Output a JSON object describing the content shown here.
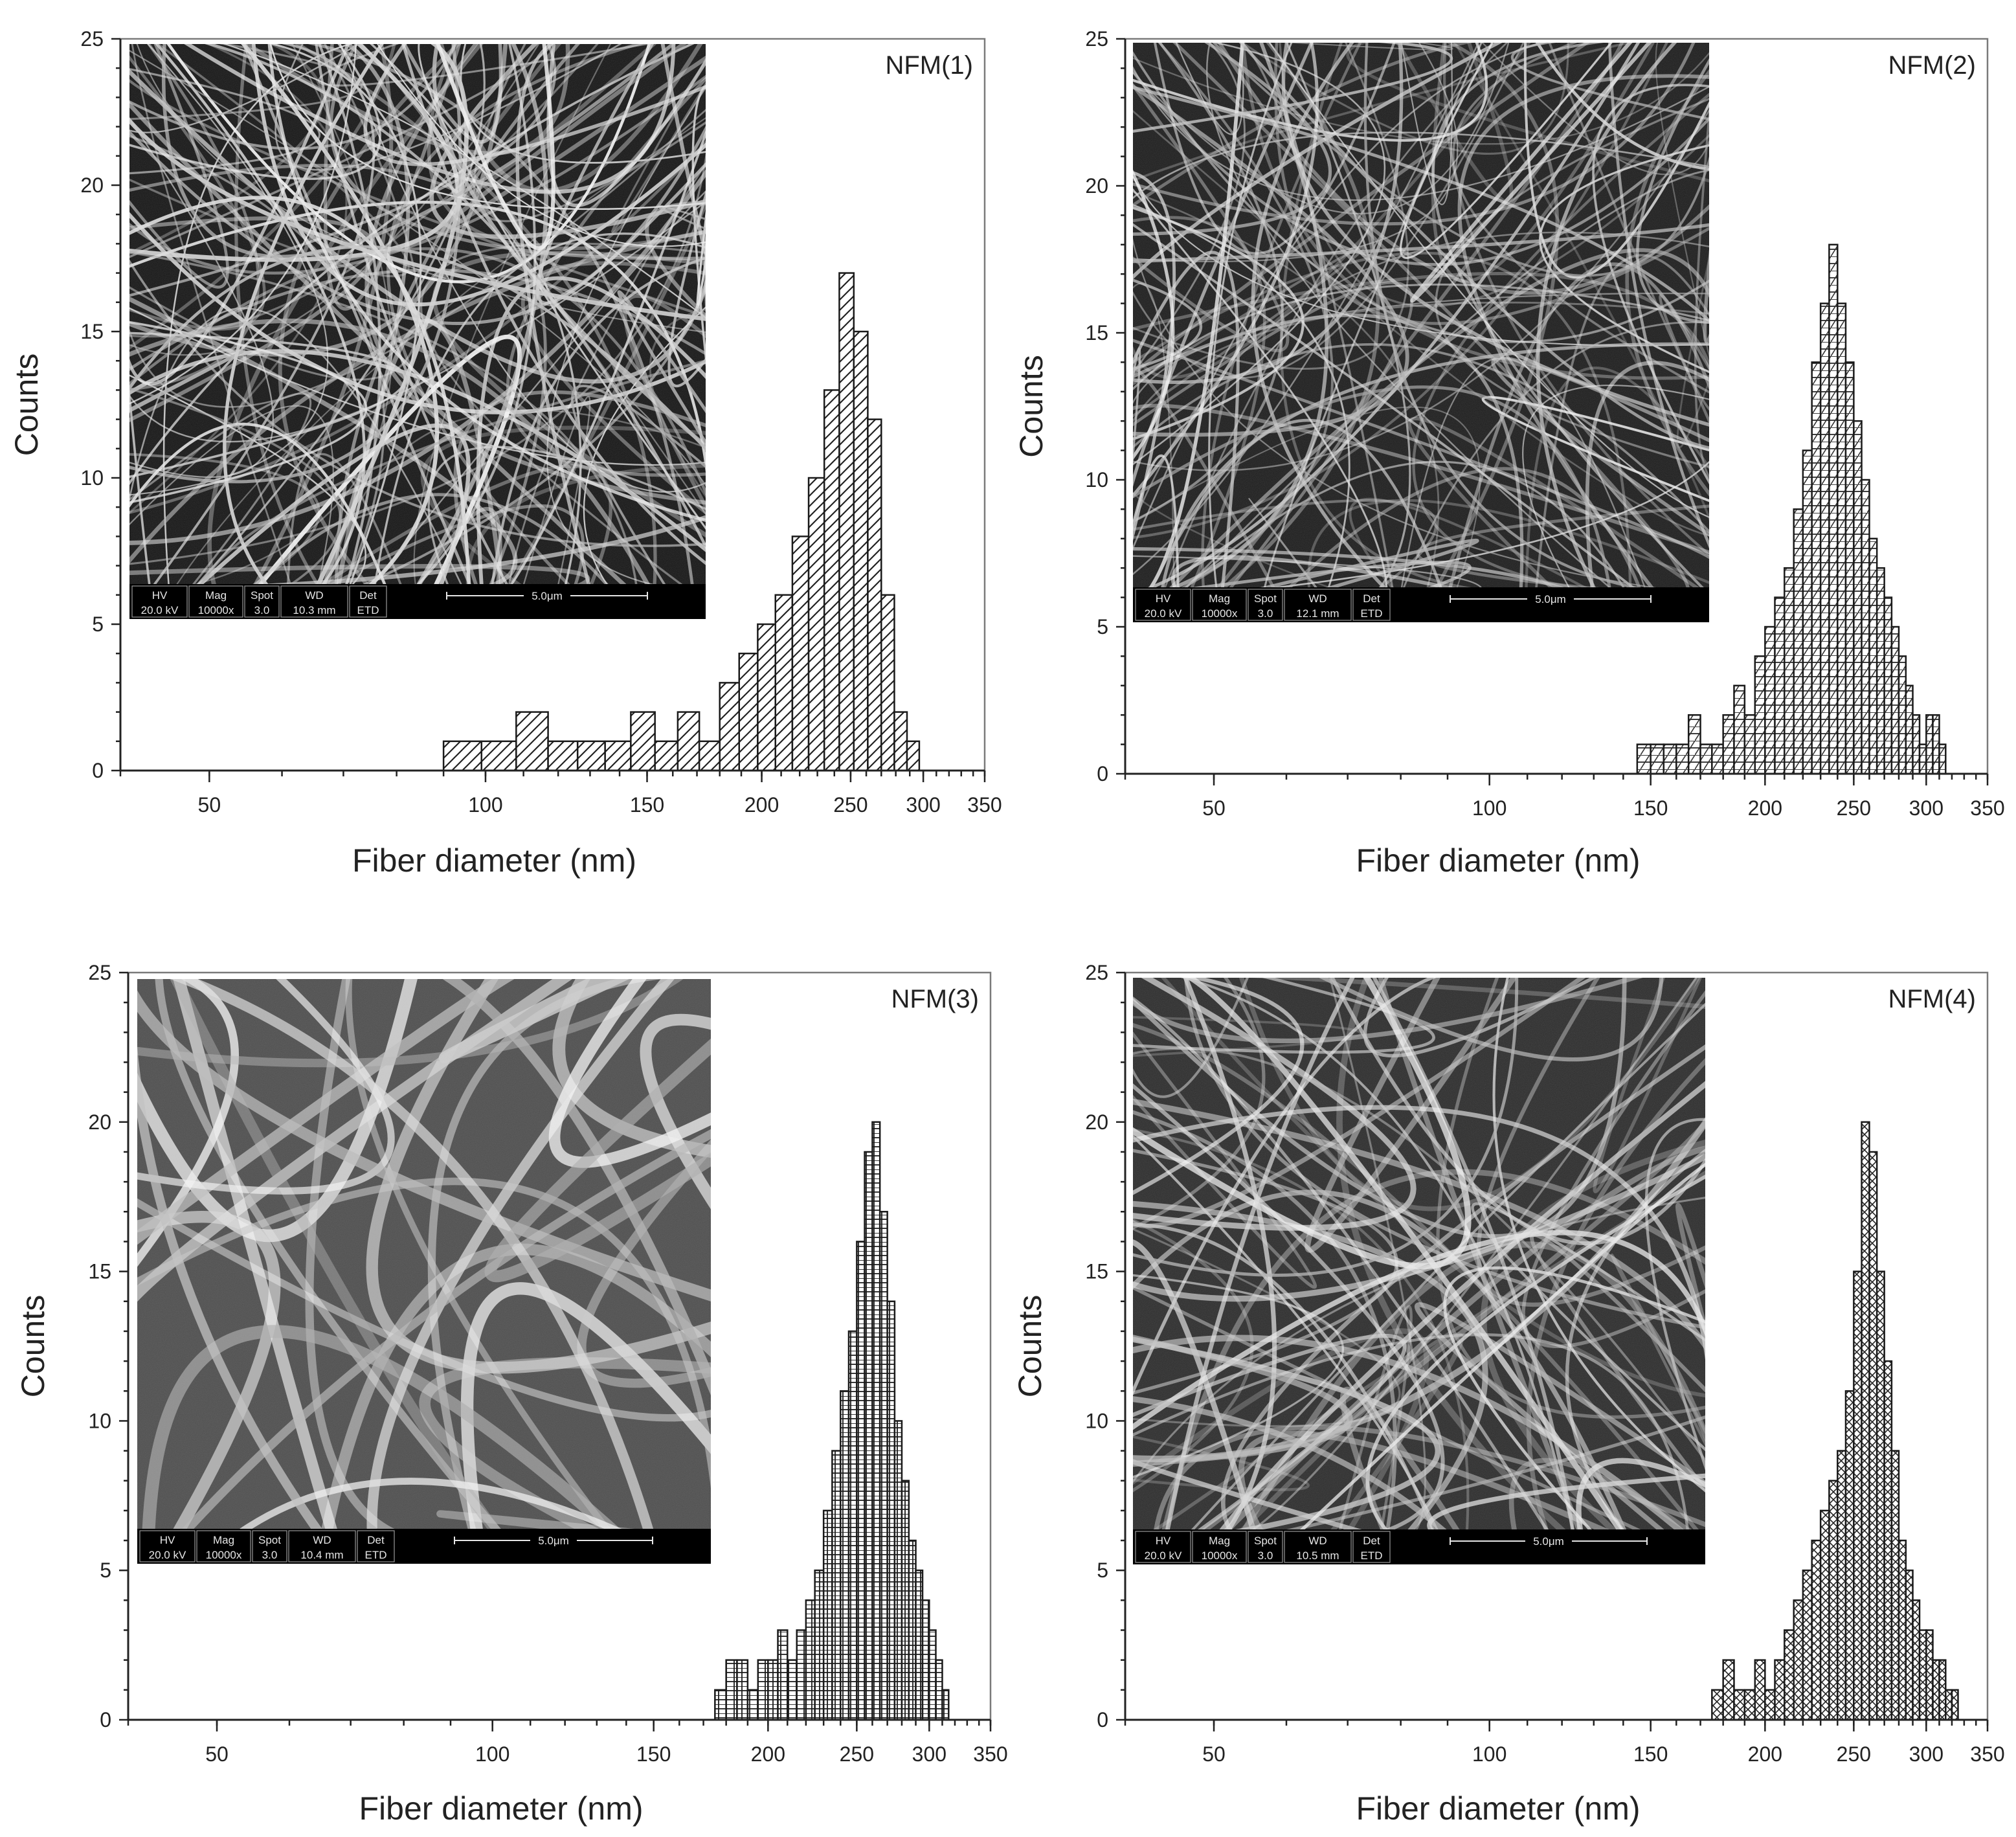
{
  "chart_data": [
    {
      "type": "bar",
      "panel_label": "NFM(1)",
      "xlabel": "Fiber diameter (nm)",
      "ylabel": "Counts",
      "x_scale": "log",
      "xlim": [
        40,
        350
      ],
      "ylim": [
        0,
        25
      ],
      "x_ticks": [
        50,
        100,
        150,
        200,
        250,
        300,
        350
      ],
      "y_ticks": [
        0,
        5,
        10,
        15,
        20,
        25
      ],
      "grid": false,
      "hatch": "diagonal",
      "x": [
        90,
        99,
        108,
        117,
        126,
        135,
        144,
        153,
        162,
        171,
        180,
        189,
        198,
        207,
        216,
        225,
        234,
        243,
        252,
        261,
        270,
        279,
        288
      ],
      "values": [
        1,
        1,
        2,
        1,
        1,
        1,
        2,
        1,
        2,
        1,
        3,
        4,
        5,
        6,
        8,
        10,
        13,
        17,
        15,
        12,
        6,
        2,
        1
      ],
      "sem_inset": {
        "labels": [
          "HV",
          "Mag",
          "Spot",
          "WD",
          "Det"
        ],
        "values": [
          "20.0 kV",
          "10000x",
          "3.0",
          "10.3 mm",
          "ETD"
        ],
        "scale_bar": "5.0μm"
      }
    },
    {
      "type": "bar",
      "panel_label": "NFM(2)",
      "xlabel": "Fiber diameter (nm)",
      "ylabel": "Counts",
      "x_scale": "log",
      "xlim": [
        40,
        350
      ],
      "ylim": [
        0,
        25
      ],
      "x_ticks": [
        50,
        100,
        150,
        200,
        250,
        300,
        350
      ],
      "y_ticks": [
        0,
        5,
        10,
        15,
        20,
        25
      ],
      "grid": false,
      "hatch": "diagonal-cross",
      "x": [
        145,
        150,
        155,
        160,
        165,
        170,
        175,
        180,
        185,
        190,
        195,
        200,
        205,
        210,
        215,
        220,
        225,
        230,
        235,
        240,
        245,
        250,
        255,
        260,
        265,
        270,
        275,
        280,
        285,
        290,
        295,
        300,
        305,
        310
      ],
      "values": [
        1,
        1,
        1,
        1,
        2,
        1,
        1,
        2,
        3,
        2,
        4,
        5,
        6,
        7,
        9,
        11,
        14,
        16,
        18,
        16,
        14,
        12,
        10,
        8,
        7,
        6,
        5,
        4,
        3,
        2,
        1,
        2,
        2,
        1
      ],
      "sem_inset": {
        "labels": [
          "HV",
          "Mag",
          "Spot",
          "WD",
          "Det"
        ],
        "values": [
          "20.0 kV",
          "10000x",
          "3.0",
          "12.1 mm",
          "ETD"
        ],
        "scale_bar": "5.0μm"
      }
    },
    {
      "type": "bar",
      "panel_label": "NFM(3)",
      "xlabel": "Fiber diameter (nm)",
      "ylabel": "Counts",
      "x_scale": "log",
      "xlim": [
        40,
        350
      ],
      "ylim": [
        0,
        25
      ],
      "x_ticks": [
        50,
        100,
        150,
        200,
        250,
        300,
        350
      ],
      "y_ticks": [
        0,
        5,
        10,
        15,
        20,
        25
      ],
      "grid": false,
      "hatch": "grid",
      "x": [
        175,
        180,
        185,
        190,
        195,
        200,
        205,
        210,
        215,
        220,
        225,
        230,
        235,
        240,
        245,
        250,
        255,
        260,
        265,
        270,
        275,
        280,
        285,
        290,
        295,
        300,
        305,
        310
      ],
      "values": [
        1,
        2,
        2,
        1,
        2,
        2,
        3,
        2,
        3,
        4,
        5,
        7,
        9,
        11,
        13,
        16,
        19,
        20,
        17,
        14,
        10,
        8,
        6,
        5,
        4,
        3,
        2,
        1
      ],
      "sem_inset": {
        "labels": [
          "HV",
          "Mag",
          "Spot",
          "WD",
          "Det"
        ],
        "values": [
          "20.0 kV",
          "10000x",
          "3.0",
          "10.4 mm",
          "ETD"
        ],
        "scale_bar": "5.0μm"
      }
    },
    {
      "type": "bar",
      "panel_label": "NFM(4)",
      "xlabel": "Fiber diameter (nm)",
      "ylabel": "Counts",
      "x_scale": "log",
      "xlim": [
        40,
        350
      ],
      "ylim": [
        0,
        25
      ],
      "x_ticks": [
        50,
        100,
        150,
        200,
        250,
        300,
        350
      ],
      "y_ticks": [
        0,
        5,
        10,
        15,
        20,
        25
      ],
      "grid": false,
      "hatch": "cross",
      "x": [
        175,
        180,
        185,
        190,
        195,
        200,
        205,
        210,
        215,
        220,
        225,
        230,
        235,
        240,
        245,
        250,
        255,
        260,
        265,
        270,
        275,
        280,
        285,
        290,
        295,
        300,
        305,
        310,
        315,
        320
      ],
      "values": [
        1,
        2,
        1,
        1,
        2,
        1,
        2,
        3,
        4,
        5,
        6,
        7,
        8,
        9,
        11,
        15,
        20,
        19,
        15,
        12,
        9,
        6,
        5,
        4,
        3,
        3,
        2,
        2,
        1,
        1
      ],
      "sem_inset": {
        "labels": [
          "HV",
          "Mag",
          "Spot",
          "WD",
          "Det"
        ],
        "values": [
          "20.0 kV",
          "10000x",
          "3.0",
          "10.5 mm",
          "ETD"
        ],
        "scale_bar": "5.0μm"
      }
    }
  ]
}
